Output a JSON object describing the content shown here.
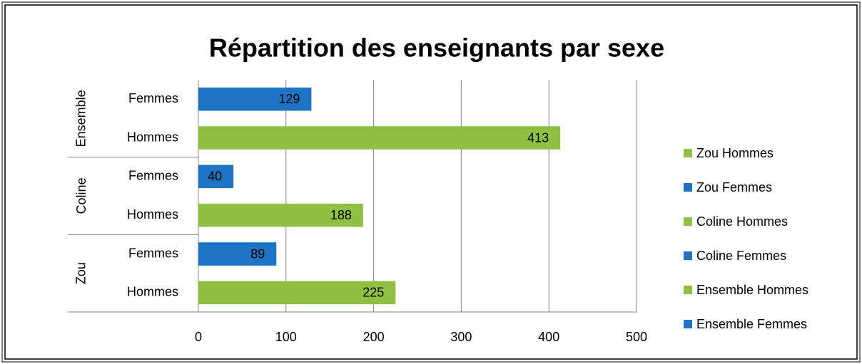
{
  "chart_data": {
    "type": "bar",
    "orientation": "horizontal",
    "title": "Répartition des enseignants par sexe",
    "categories": [
      "Hommes",
      "Femmes",
      "Hommes",
      "Femmes",
      "Hommes",
      "Femmes"
    ],
    "groups": [
      "Zou",
      "Coline",
      "Ensemble"
    ],
    "series": [
      {
        "name": "Zou Hommes",
        "color": "#8fc043",
        "values": [
          225,
          null,
          null,
          null,
          null,
          null
        ]
      },
      {
        "name": "Zou Femmes",
        "color": "#1e73c4",
        "values": [
          null,
          89,
          null,
          null,
          null,
          null
        ]
      },
      {
        "name": "Coline Hommes",
        "color": "#8fc043",
        "values": [
          null,
          null,
          188,
          null,
          null,
          null
        ]
      },
      {
        "name": "Coline Femmes",
        "color": "#1e73c4",
        "values": [
          null,
          null,
          null,
          40,
          null,
          null
        ]
      },
      {
        "name": "Ensemble Hommes",
        "color": "#8fc043",
        "values": [
          null,
          null,
          null,
          null,
          413,
          null
        ]
      },
      {
        "name": "Ensemble Femmes",
        "color": "#1e73c4",
        "values": [
          null,
          null,
          null,
          null,
          null,
          129
        ]
      }
    ],
    "xlim": [
      0,
      500
    ],
    "xticks": [
      0,
      100,
      200,
      300,
      400,
      500
    ],
    "grid": true,
    "legend": "right"
  }
}
